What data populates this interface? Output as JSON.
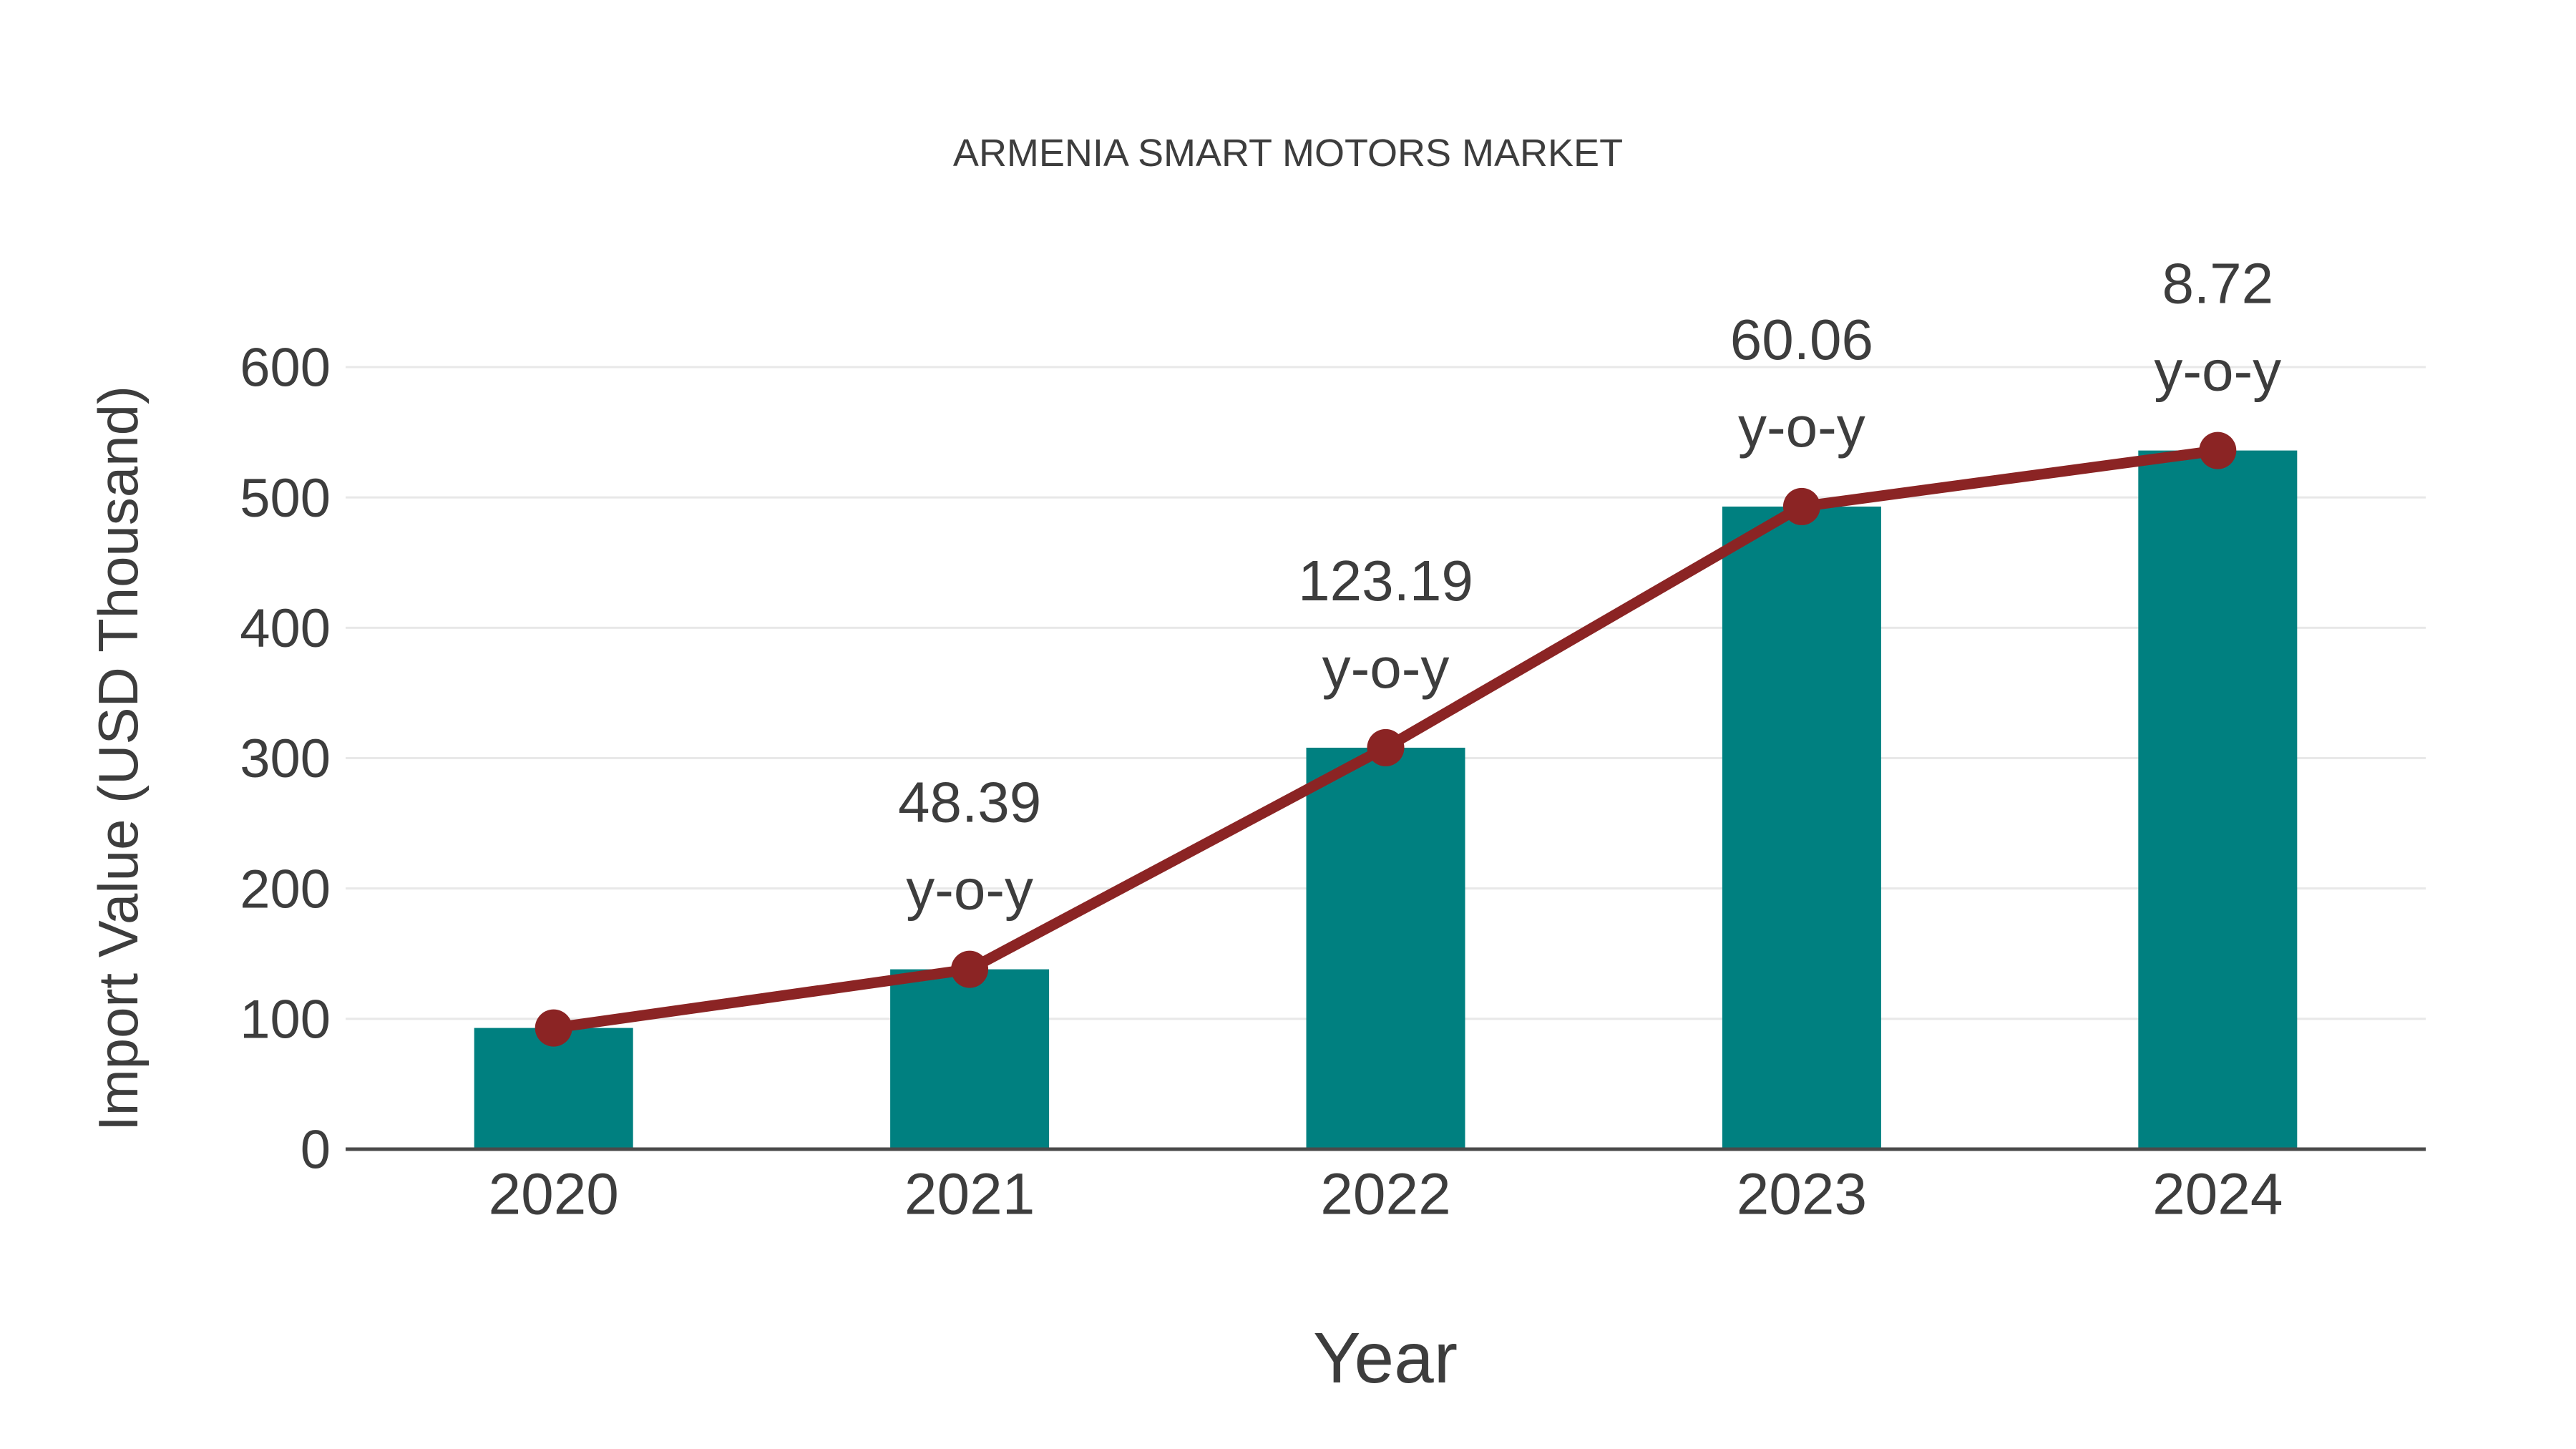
{
  "chart_data": {
    "type": "bar",
    "title": "ARMENIA SMART MOTORS MARKET",
    "xlabel": "Year",
    "ylabel": "Import Value (USD Thousand)",
    "categories": [
      "2020",
      "2021",
      "2022",
      "2023",
      "2024"
    ],
    "series": [
      {
        "name": "Import Value bars",
        "type": "bar",
        "values": [
          93,
          138,
          308,
          493,
          536
        ]
      },
      {
        "name": "Import Value trend line",
        "type": "line",
        "values": [
          93,
          138,
          308,
          493,
          536
        ]
      }
    ],
    "annotations": [
      {
        "category": "2021",
        "value": "48.39",
        "label": "y-o-y"
      },
      {
        "category": "2022",
        "value": "123.19",
        "label": "y-o-y"
      },
      {
        "category": "2023",
        "value": "60.06",
        "label": "y-o-y"
      },
      {
        "category": "2024",
        "value": "8.72",
        "label": "y-o-y"
      }
    ],
    "yticks": [
      0,
      100,
      200,
      300,
      400,
      500,
      600
    ],
    "ylim": [
      0,
      600
    ],
    "grid": true,
    "legend": "none",
    "style": {
      "bar_color": "#008080",
      "line_color": "#8B2424",
      "marker_color": "#8B2424",
      "grid_color": "#E8E8E8",
      "axis_color": "#4A4A4A",
      "text_color": "#3D3D3D",
      "background": "#FFFFFF"
    }
  }
}
